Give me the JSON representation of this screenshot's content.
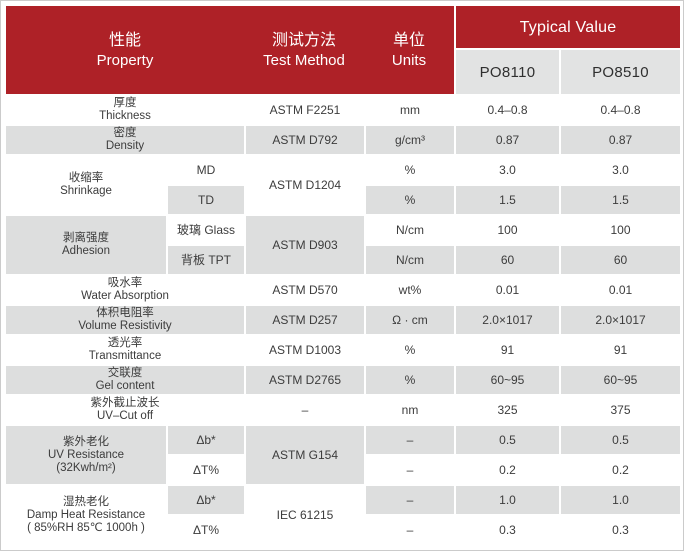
{
  "header": {
    "property_zh": "性能",
    "property_en": "Property",
    "method_zh": "测试方法",
    "method_en": "Test Method",
    "units_zh": "单位",
    "units_en": "Units",
    "typical_value": "Typical Value",
    "products": {
      "p1": "PO8110",
      "p2": "PO8510"
    }
  },
  "colors": {
    "header_red": "#ae2127",
    "row_gray": "#dddede",
    "product_cell_gray": "#e2e3e3",
    "border_gray": "#cbcbcb",
    "text_dark": "#3c3c3c"
  },
  "table": {
    "groups": [
      {
        "zh": "厚度",
        "en": "Thickness",
        "method": "ASTM F2251",
        "rows": [
          {
            "unit": "mm",
            "v1": "0.4–0.8",
            "v2": "0.4–0.8"
          }
        ]
      },
      {
        "zh": "密度",
        "en": "Density",
        "method": "ASTM D792",
        "rows": [
          {
            "unit": "g/cm³",
            "v1": "0.87",
            "v2": "0.87"
          }
        ]
      },
      {
        "zh": "收缩率",
        "en": "Shrinkage",
        "method": "ASTM D1204",
        "rows": [
          {
            "sub": "MD",
            "unit": "%",
            "v1": "3.0",
            "v2": "3.0"
          },
          {
            "sub": "TD",
            "unit": "%",
            "v1": "1.5",
            "v2": "1.5"
          }
        ]
      },
      {
        "zh": "剥离强度",
        "en": "Adhesion",
        "method": "ASTM D903",
        "rows": [
          {
            "sub": "玻璃 Glass",
            "unit": "N/cm",
            "v1": "100",
            "v2": "100"
          },
          {
            "sub": "背板 TPT",
            "unit": "N/cm",
            "v1": "60",
            "v2": "60"
          }
        ]
      },
      {
        "zh": "吸水率",
        "en": "Water Absorption",
        "method": "ASTM D570",
        "rows": [
          {
            "unit": "wt%",
            "v1": "0.01",
            "v2": "0.01"
          }
        ]
      },
      {
        "zh": "体积电阻率",
        "en": "Volume Resistivity",
        "method": "ASTM D257",
        "rows": [
          {
            "unit": "Ω · cm",
            "v1": "2.0×1017",
            "v2": "2.0×1017"
          }
        ]
      },
      {
        "zh": "透光率",
        "en": "Transmittance",
        "method": "ASTM D1003",
        "rows": [
          {
            "unit": "%",
            "v1": "91",
            "v2": "91"
          }
        ]
      },
      {
        "zh": "交联度",
        "en": "Gel content",
        "method": "ASTM D2765",
        "rows": [
          {
            "unit": "%",
            "v1": "60~95",
            "v2": "60~95"
          }
        ]
      },
      {
        "zh": "紫外截止波长",
        "en": "UV–Cut off",
        "method": "–",
        "rows": [
          {
            "unit": "nm",
            "v1": "325",
            "v2": "375"
          }
        ]
      },
      {
        "zh": "紫外老化",
        "en": "UV Resistance",
        "en2": "(32Kwh/m²)",
        "method": "ASTM G154",
        "rows": [
          {
            "sub": "Δb*",
            "unit": "–",
            "v1": "0.5",
            "v2": "0.5"
          },
          {
            "sub": "ΔT%",
            "unit": "–",
            "v1": "0.2",
            "v2": "0.2"
          }
        ]
      },
      {
        "zh": "湿热老化",
        "en": "Damp Heat Resistance",
        "en2": "( 85%RH  85℃  1000h )",
        "method": "IEC 61215",
        "rows": [
          {
            "sub": "Δb*",
            "unit": "–",
            "v1": "1.0",
            "v2": "1.0"
          },
          {
            "sub": "ΔT%",
            "unit": "–",
            "v1": "0.3",
            "v2": "0.3"
          }
        ]
      }
    ]
  }
}
